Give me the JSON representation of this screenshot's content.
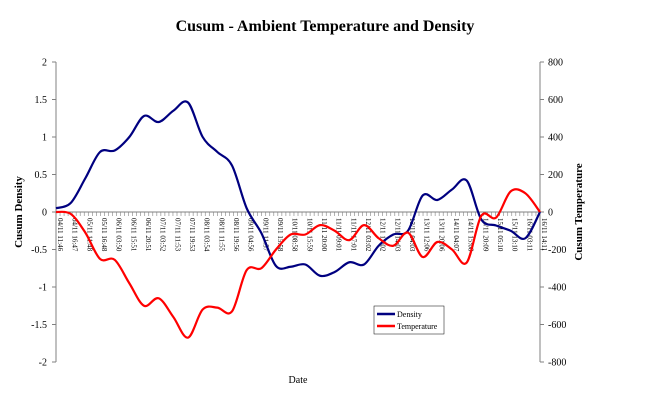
{
  "chart_data": {
    "type": "line",
    "title": "Cusum - Ambient Temperature and Density",
    "xlabel": "Date",
    "ylabel_left": "Cusum Density",
    "ylabel_right": "Cusum Temperature",
    "ylim_left": [
      -2,
      2
    ],
    "ylim_right": [
      -800,
      800
    ],
    "yticks_left": [
      "2",
      "1.5",
      "1",
      "0.5",
      "0",
      "-0.5",
      "-1",
      "-1.5",
      "-2"
    ],
    "yticks_right": [
      "800",
      "600",
      "400",
      "200",
      "0",
      "-200",
      "-400",
      "-600",
      "-800"
    ],
    "categories": [
      "04/11 11:46",
      "04/11 16:47",
      "05/11 11:48",
      "05/11 16:48",
      "06/11 03:50",
      "06/11 15:51",
      "06/11 20:51",
      "07/11 03:52",
      "07/11 11:53",
      "07/11 19:53",
      "08/11 03:54",
      "08/11 11:55",
      "08/11 19:56",
      "09/11 04:56",
      "09/11 11:57",
      "09/11 15:58",
      "10/11 08:58",
      "10/11 15:59",
      "11/11 20:00",
      "11/11 09:01",
      "11/11 17:01",
      "12/11 03:02",
      "12/11 17:02",
      "12/11 14:03",
      "13/11 04:03",
      "13/11 12:06",
      "13/11 20:06",
      "14/11 04:07",
      "14/11 15:08",
      "14/11 20:09",
      "15/11 05:10",
      "15/11 13:10",
      "16/11 03:11",
      "16/11 14:11"
    ],
    "series": [
      {
        "name": "Density",
        "color": "#000080",
        "axis": "left",
        "values": [
          0.05,
          0.12,
          0.45,
          0.8,
          0.82,
          1.0,
          1.28,
          1.2,
          1.35,
          1.46,
          1.0,
          0.8,
          0.62,
          0.05,
          -0.28,
          -0.72,
          -0.73,
          -0.7,
          -0.85,
          -0.8,
          -0.67,
          -0.7,
          -0.45,
          -0.3,
          -0.25,
          0.22,
          0.16,
          0.3,
          0.42,
          -0.1,
          -0.18,
          -0.25,
          -0.35,
          0.0
        ]
      },
      {
        "name": "Temperature",
        "color": "#ff0000",
        "axis": "right",
        "values": [
          0,
          -10,
          -110,
          -250,
          -255,
          -380,
          -500,
          -460,
          -560,
          -670,
          -520,
          -510,
          -530,
          -310,
          -300,
          -200,
          -120,
          -120,
          -70,
          -100,
          -150,
          -70,
          -140,
          -180,
          -110,
          -240,
          -160,
          -200,
          -270,
          -20,
          -30,
          110,
          100,
          0
        ]
      }
    ],
    "legend": {
      "position": "bottom-right",
      "entries": [
        "Density",
        "Temperature"
      ]
    }
  }
}
